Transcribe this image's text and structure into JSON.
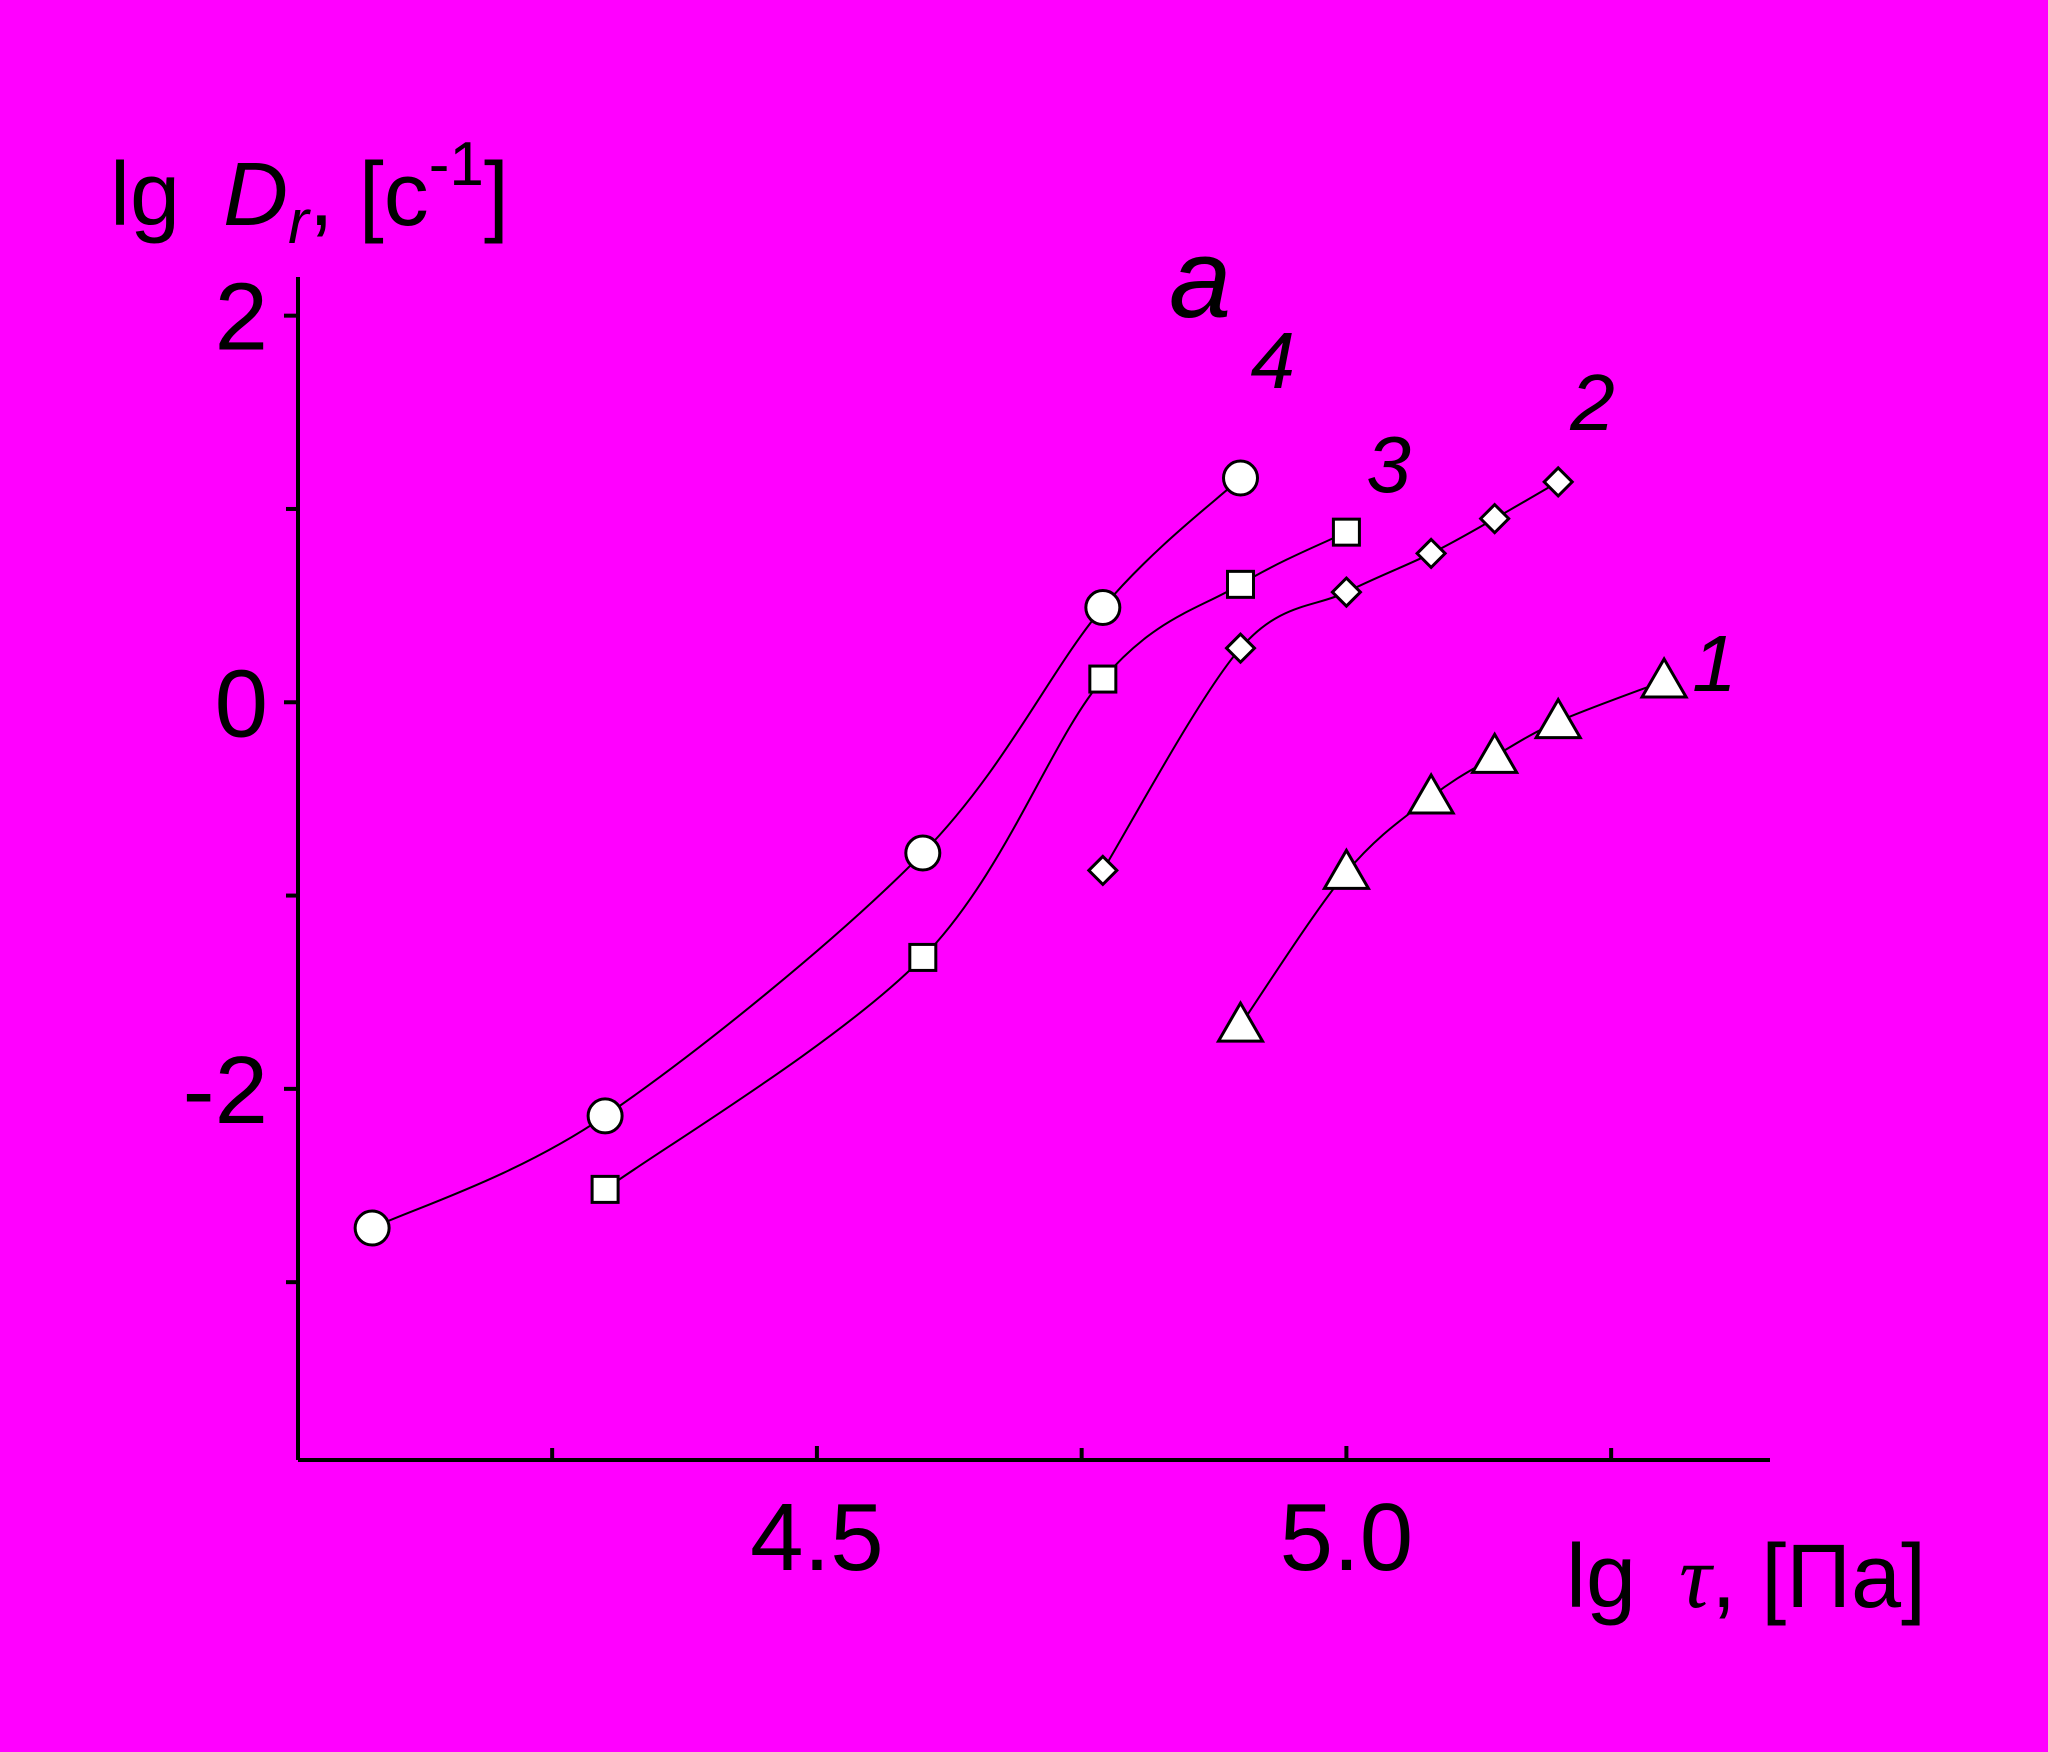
{
  "chart_data": {
    "type": "line",
    "title": "a",
    "y_label": [
      "lg ",
      "D",
      "r",
      ", [c",
      "-1",
      "]"
    ],
    "x_label": [
      "lg ",
      "τ",
      ", [Па]"
    ],
    "xlim": [
      4.01,
      5.4
    ],
    "ylim": [
      -3.92,
      2.2
    ],
    "xticks": [
      4.5,
      {
        "value": 5,
        "label": "5.0"
      }
    ],
    "xminor": [
      4.25,
      4.75,
      5.25
    ],
    "yticks": [
      -2,
      0,
      2
    ],
    "yminor": [
      -3,
      -1,
      1
    ],
    "series": [
      {
        "name": "1",
        "marker": "triangle",
        "color": "#ffffff",
        "x": [
          4.9,
          5.0,
          5.08,
          5.14,
          5.2,
          5.3
        ],
        "values": [
          -1.67,
          -0.88,
          -0.49,
          -0.28,
          -0.1,
          0.11
        ]
      },
      {
        "name": "2",
        "marker": "diamond",
        "color": "#ffffff",
        "x": [
          4.77,
          4.9,
          5.0,
          5.08,
          5.14,
          5.2
        ],
        "values": [
          -0.87,
          0.28,
          0.57,
          0.77,
          0.95,
          1.14
        ]
      },
      {
        "name": "3",
        "marker": "square",
        "color": "#ffffff",
        "x": [
          4.3,
          4.6,
          4.77,
          4.9,
          5.0
        ],
        "values": [
          -2.52,
          -1.32,
          0.12,
          0.61,
          0.88
        ]
      },
      {
        "name": "4",
        "marker": "circle",
        "color": "#ffffff",
        "x": [
          4.08,
          4.3,
          4.6,
          4.77,
          4.9
        ],
        "values": [
          -2.72,
          -2.14,
          -0.78,
          0.49,
          1.16
        ]
      }
    ]
  }
}
